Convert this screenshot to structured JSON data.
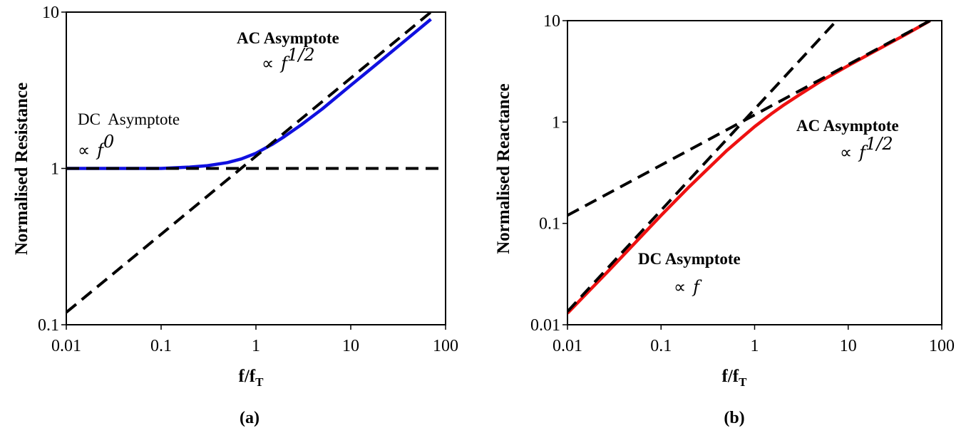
{
  "chart_data": [
    {
      "panel_label": "(a)",
      "type": "line",
      "ylabel": "Normalised Resistance",
      "xlabel_main": "f/f",
      "xlabel_sub": "T",
      "xscale": "log",
      "yscale": "log",
      "xlim": [
        0.01,
        100
      ],
      "ylim": [
        0.1,
        10
      ],
      "x_ticks": [
        "0.01",
        "0.1",
        "1",
        "10",
        "100"
      ],
      "y_ticks": [
        "0.1",
        "1",
        "10"
      ],
      "series": [
        {
          "color": "#1010e0",
          "style": "solid",
          "x": [
            0.01,
            0.03,
            0.1,
            0.2,
            0.3,
            0.5,
            0.7,
            1,
            1.5,
            2,
            3,
            5,
            10,
            20,
            40,
            70
          ],
          "y": [
            1.0,
            1.0,
            1.0,
            1.02,
            1.04,
            1.09,
            1.15,
            1.25,
            1.43,
            1.6,
            1.9,
            2.4,
            3.4,
            4.8,
            6.8,
            9.0
          ]
        },
        {
          "color": "#000000",
          "style": "dashed",
          "x": [
            0.01,
            100
          ],
          "y": [
            1.0,
            1.0
          ]
        },
        {
          "color": "#000000",
          "style": "dashed",
          "x": [
            0.01,
            70
          ],
          "y": [
            0.12,
            10.0
          ]
        }
      ],
      "annotations": {
        "ac_title": "AC Asymptote",
        "ac_prop": "∝",
        "ac_exp": "f",
        "ac_pow": "1/2",
        "dc_title": "DC  Asymptote",
        "dc_prop": "∝",
        "dc_exp": "f",
        "dc_pow": "0"
      }
    },
    {
      "panel_label": "(b)",
      "type": "line",
      "ylabel": "Normalised Reactance",
      "xlabel_main": "f/f",
      "xlabel_sub": "T",
      "xscale": "log",
      "yscale": "log",
      "xlim": [
        0.01,
        100
      ],
      "ylim": [
        0.01,
        10
      ],
      "x_ticks": [
        "0.01",
        "0.1",
        "1",
        "10",
        "100"
      ],
      "y_ticks": [
        "0.01",
        "0.1",
        "1",
        "10"
      ],
      "series": [
        {
          "color": "#ee1111",
          "style": "solid",
          "x": [
            0.01,
            0.03,
            0.1,
            0.2,
            0.3,
            0.5,
            0.7,
            1,
            1.5,
            2,
            3,
            5,
            10,
            20,
            40,
            75
          ],
          "y": [
            0.013,
            0.037,
            0.12,
            0.23,
            0.33,
            0.52,
            0.68,
            0.9,
            1.2,
            1.45,
            1.85,
            2.5,
            3.6,
            5.1,
            7.2,
            10.0
          ]
        },
        {
          "color": "#000000",
          "style": "dashed",
          "x": [
            0.01,
            7.5
          ],
          "y": [
            0.0135,
            10.0
          ]
        },
        {
          "color": "#000000",
          "style": "dashed",
          "x": [
            0.01,
            75
          ],
          "y": [
            0.12,
            10.0
          ]
        }
      ],
      "annotations": {
        "ac_title": "AC Asymptote",
        "ac_prop": "∝",
        "ac_exp": "f",
        "ac_pow": "1/2",
        "dc_title": "DC Asymptote",
        "dc_prop": "∝",
        "dc_exp": "f"
      }
    }
  ]
}
